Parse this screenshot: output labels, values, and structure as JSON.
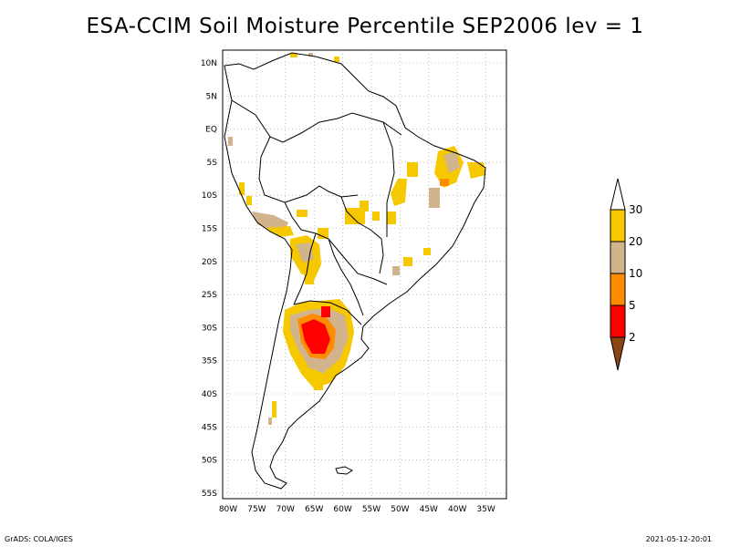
{
  "title": "ESA-CCIM Soil Moisture Percentile SEP2006 lev = 1",
  "axes": {
    "lon_ticks": [
      "80W",
      "75W",
      "70W",
      "65W",
      "60W",
      "55W",
      "50W",
      "45W",
      "40W",
      "35W"
    ],
    "lat_ticks": [
      "10N",
      "5N",
      "EQ",
      "5S",
      "10S",
      "15S",
      "20S",
      "25S",
      "30S",
      "35S",
      "40S",
      "45S",
      "50S",
      "55S"
    ]
  },
  "colorbar": {
    "labels": [
      "30",
      "20",
      "10",
      "5",
      "2"
    ],
    "colors": {
      "top_arrow": "#ffffff",
      "band_20_30": "#f5c800",
      "band_10_20": "#d2b48c",
      "band_5_10": "#ff8c00",
      "band_2_5": "#ff0000",
      "bottom_arrow": "#8b4513"
    }
  },
  "footer": {
    "credit": "GrADS: COLA/IGES",
    "timestamp": "2021-05-12-20:01"
  }
}
